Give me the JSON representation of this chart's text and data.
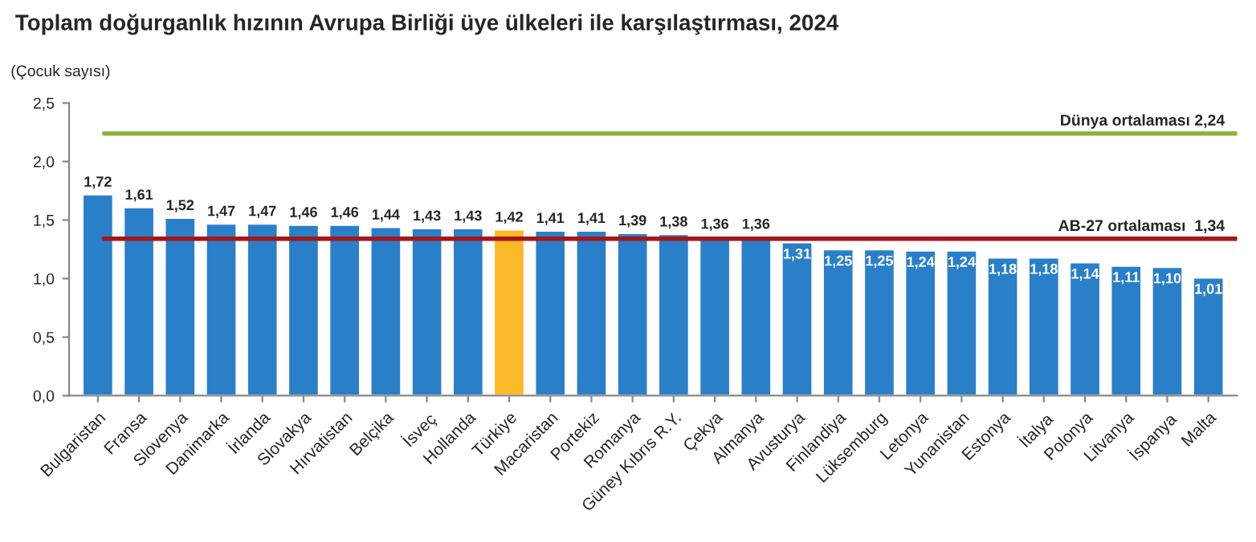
{
  "chart_data": {
    "type": "bar",
    "title": "Toplam doğurganlık hızının Avrupa Birliği üye ülkeleri ile karşılaştırması, 2024",
    "ylabel": "(Çocuk sayısı)",
    "categories": [
      "Bulgaristan",
      "Fransa",
      "Slovenya",
      "Danimarka",
      "İrlanda",
      "Slovakya",
      "Hırvatistan",
      "Belçika",
      "İsveç",
      "Hollanda",
      "Türkiye",
      "Macaristan",
      "Portekiz",
      "Romanya",
      "Güney Kıbrıs R.Y.",
      "Çekya",
      "Almanya",
      "Avusturya",
      "Finlandiya",
      "Lüksemburg",
      "Letonya",
      "Yunanistan",
      "Estonya",
      "İtalya",
      "Polonya",
      "Litvanya",
      "İspanya",
      "Malta"
    ],
    "values": [
      1.72,
      1.61,
      1.52,
      1.47,
      1.47,
      1.46,
      1.46,
      1.44,
      1.43,
      1.43,
      1.42,
      1.41,
      1.41,
      1.39,
      1.38,
      1.36,
      1.36,
      1.31,
      1.25,
      1.25,
      1.24,
      1.24,
      1.18,
      1.18,
      1.14,
      1.11,
      1.1,
      1.01
    ],
    "colors": [
      "#2a7fc9",
      "#2a7fc9",
      "#2a7fc9",
      "#2a7fc9",
      "#2a7fc9",
      "#2a7fc9",
      "#2a7fc9",
      "#2a7fc9",
      "#2a7fc9",
      "#2a7fc9",
      "#fbb829",
      "#2a7fc9",
      "#2a7fc9",
      "#2a7fc9",
      "#2a7fc9",
      "#2a7fc9",
      "#2a7fc9",
      "#2a7fc9",
      "#2a7fc9",
      "#2a7fc9",
      "#2a7fc9",
      "#2a7fc9",
      "#2a7fc9",
      "#2a7fc9",
      "#2a7fc9",
      "#2a7fc9",
      "#2a7fc9",
      "#2a7fc9"
    ],
    "value_labels": [
      "1,72",
      "1,61",
      "1,52",
      "1,47",
      "1,47",
      "1,46",
      "1,46",
      "1,44",
      "1,43",
      "1,43",
      "1,42",
      "1,41",
      "1,41",
      "1,39",
      "1,38",
      "1,36",
      "1,36",
      "1,31",
      "1,25",
      "1,25",
      "1,24",
      "1,24",
      "1,18",
      "1,18",
      "1,14",
      "1,11",
      "1,10",
      "1,01"
    ],
    "ylim": [
      0,
      2.5
    ],
    "yticks": [
      {
        "value": 0,
        "label": "0,0"
      },
      {
        "value": 0.5,
        "label": "0,5"
      },
      {
        "value": 1,
        "label": "1,0"
      },
      {
        "value": 1.5,
        "label": "1,5"
      },
      {
        "value": 2,
        "label": "2,0"
      },
      {
        "value": 2.5,
        "label": "2,5"
      }
    ],
    "ref_lines": [
      {
        "axis": "y",
        "value": 2.24,
        "label": "Dünya ortalaması 2,24",
        "color": "#8db33d"
      },
      {
        "axis": "y",
        "value": 1.34,
        "label": "AB-27 ortalaması  1,34",
        "color": "#a4161a"
      }
    ],
    "grid": false,
    "legend": false
  }
}
